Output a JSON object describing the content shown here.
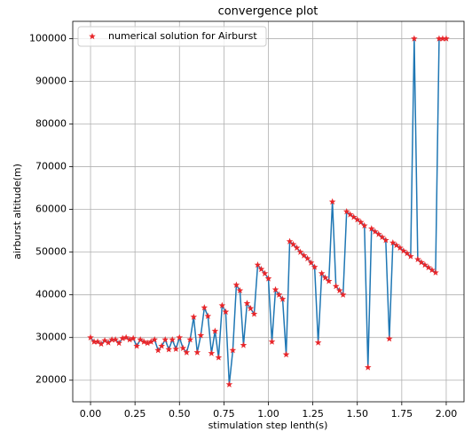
{
  "chart_data": {
    "type": "line",
    "title": "convergence plot",
    "xlabel": "stimulation step lenth(s)",
    "ylabel": "airburst altitude(m)",
    "x": [
      0.0,
      0.02,
      0.04,
      0.06,
      0.08,
      0.1,
      0.12,
      0.14,
      0.16,
      0.18,
      0.2,
      0.22,
      0.24,
      0.26,
      0.28,
      0.3,
      0.32,
      0.34,
      0.36,
      0.38,
      0.4,
      0.42,
      0.44,
      0.46,
      0.48,
      0.5,
      0.52,
      0.54,
      0.56,
      0.58,
      0.6,
      0.62,
      0.64,
      0.66,
      0.68,
      0.7,
      0.72,
      0.74,
      0.76,
      0.78,
      0.8,
      0.82,
      0.84,
      0.86,
      0.88,
      0.9,
      0.92,
      0.94,
      0.96,
      0.98,
      1.0,
      1.02,
      1.04,
      1.06,
      1.08,
      1.1,
      1.12,
      1.14,
      1.16,
      1.18,
      1.2,
      1.22,
      1.24,
      1.26,
      1.28,
      1.3,
      1.32,
      1.34,
      1.36,
      1.38,
      1.4,
      1.42,
      1.44,
      1.46,
      1.48,
      1.5,
      1.52,
      1.54,
      1.56,
      1.58,
      1.6,
      1.62,
      1.64,
      1.66,
      1.68,
      1.7,
      1.72,
      1.74,
      1.76,
      1.78,
      1.8,
      1.82,
      1.84,
      1.86,
      1.88,
      1.9,
      1.92,
      1.94,
      1.96,
      1.98,
      2.0
    ],
    "series": [
      {
        "name": "numerical solution for Airburst",
        "color": "#1f77b4",
        "marker_color": "#e8262a",
        "values": [
          30000,
          29000,
          29000,
          28500,
          29300,
          28800,
          29500,
          29500,
          28700,
          29800,
          30000,
          29500,
          29800,
          28000,
          29500,
          29000,
          28700,
          29000,
          29500,
          27000,
          28000,
          29500,
          27200,
          29500,
          27300,
          30000,
          27500,
          26500,
          29500,
          34800,
          26500,
          30500,
          37000,
          35000,
          26300,
          31500,
          25300,
          37500,
          36000,
          19000,
          27000,
          42300,
          41000,
          28200,
          38000,
          36800,
          35500,
          47000,
          46000,
          45000,
          43800,
          29000,
          41200,
          40000,
          39000,
          26000,
          52500,
          51800,
          51000,
          50000,
          49200,
          48500,
          47500,
          46500,
          28800,
          45000,
          44000,
          43200,
          61800,
          42000,
          41000,
          40000,
          59500,
          58800,
          58200,
          57600,
          57000,
          56200,
          23000,
          55500,
          54800,
          54200,
          53500,
          52800,
          29700,
          52200,
          51600,
          51000,
          50300,
          49700,
          49000,
          100000,
          48300,
          47600,
          47000,
          46400,
          45800,
          45200,
          100000,
          100000,
          100000
        ]
      }
    ],
    "xlim": [
      -0.1,
      2.1
    ],
    "xticks": [
      {
        "value": 0,
        "label": "0.00"
      },
      {
        "value": 0.25,
        "label": "0.25"
      },
      {
        "value": 0.5,
        "label": "0.50"
      },
      {
        "value": 0.75,
        "label": "0.75"
      },
      {
        "value": 1,
        "label": "1.00"
      },
      {
        "value": 1.25,
        "label": "1.25"
      },
      {
        "value": 1.5,
        "label": "1.50"
      },
      {
        "value": 1.75,
        "label": "1.75"
      },
      {
        "value": 2,
        "label": "2.00"
      }
    ],
    "ylim": [
      14950,
      104050
    ],
    "yticks": [
      20000,
      30000,
      40000,
      50000,
      60000,
      70000,
      80000,
      90000,
      100000
    ],
    "grid": true,
    "legend": "upper left"
  }
}
